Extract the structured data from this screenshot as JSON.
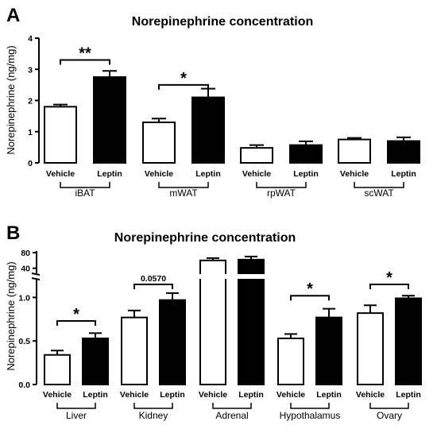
{
  "chart_data": [
    {
      "type": "bar",
      "panel_label": "A",
      "title": "Norepinephrine concentration",
      "ylabel": "Norepinephrine (ng/mg)",
      "ylim": [
        0,
        4
      ],
      "yticks": [
        "0",
        "1",
        "2",
        "3",
        "4"
      ],
      "legend_position": "none",
      "grid": false,
      "groups": [
        "iBAT",
        "mWAT",
        "rpWAT",
        "scWAT"
      ],
      "bar_labels": [
        "Vehicle",
        "Leptin"
      ],
      "series": [
        {
          "name": "Vehicle",
          "values": [
            1.8,
            1.3,
            0.48,
            0.75
          ],
          "errors": [
            0.07,
            0.12,
            0.09,
            0.05
          ]
        },
        {
          "name": "Leptin",
          "values": [
            2.75,
            2.1,
            0.57,
            0.7
          ],
          "errors": [
            0.2,
            0.28,
            0.12,
            0.12
          ]
        }
      ],
      "annotations": [
        {
          "group": "iBAT",
          "text": "**",
          "bracket_y": 3.3
        },
        {
          "group": "mWAT",
          "text": "*",
          "bracket_y": 2.5
        }
      ]
    },
    {
      "type": "bar",
      "panel_label": "B",
      "title": "Norepinephrine concentration",
      "ylabel": "Norepinephrine (ng/mg)",
      "ylim": [
        0,
        80
      ],
      "axis_break": true,
      "lower_yticks": [
        "0.0",
        "0.5",
        "1.0"
      ],
      "upper_yticks": [
        "40",
        "80"
      ],
      "legend_position": "none",
      "grid": false,
      "groups": [
        "Liver",
        "Kidney",
        "Adrenal",
        "Hypothalamus",
        "Ovary"
      ],
      "bar_labels": [
        "Vehicle",
        "Leptin"
      ],
      "series": [
        {
          "name": "Vehicle",
          "values": [
            0.34,
            0.77,
            60,
            0.53,
            0.82
          ],
          "errors": [
            0.05,
            0.08,
            6,
            0.05,
            0.09
          ]
        },
        {
          "name": "Leptin",
          "values": [
            0.53,
            0.97,
            62,
            0.77,
            0.99
          ],
          "errors": [
            0.06,
            0.08,
            8,
            0.1,
            0.03
          ]
        }
      ],
      "annotations": [
        {
          "group": "Liver",
          "text": "*",
          "bracket_y": 0.73
        },
        {
          "group": "Kidney",
          "text": "0.0570",
          "bracket_y": 1.15
        },
        {
          "group": "Hypothalamus",
          "text": "*",
          "bracket_y": 1.02
        },
        {
          "group": "Ovary",
          "text": "*",
          "bracket_y": 1.15
        }
      ]
    }
  ]
}
